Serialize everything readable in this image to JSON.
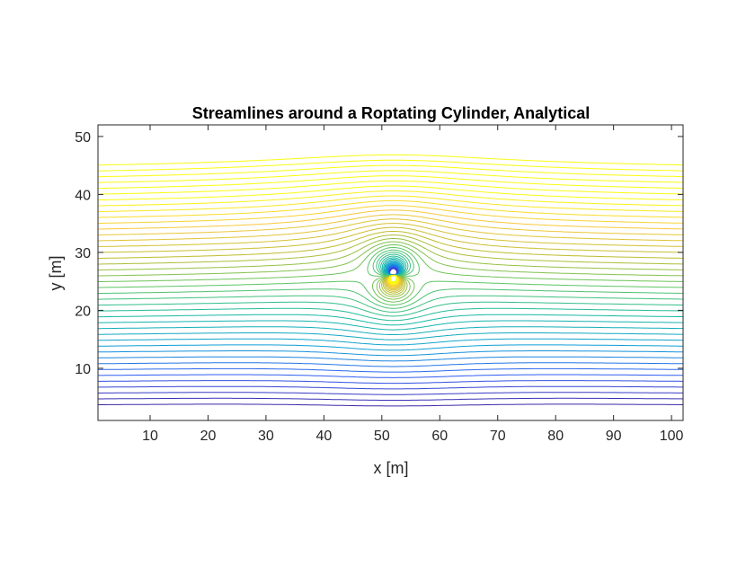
{
  "chart_data": {
    "type": "contour",
    "title": "Streamlines around a Roptating Cylinder, Analytical",
    "xlabel": "x [m]",
    "ylabel": "y [m]",
    "xlim": [
      1,
      102
    ],
    "ylim": [
      1,
      52
    ],
    "x_ticks": [
      "10",
      "20",
      "30",
      "40",
      "50",
      "60",
      "70",
      "80",
      "90",
      "100"
    ],
    "y_ticks": [
      "10",
      "20",
      "30",
      "40",
      "50"
    ],
    "grid": false,
    "box": true,
    "cylinder_center": [
      52,
      26
    ],
    "colormap": "parula",
    "colormap_stops": [
      "#3e26a8",
      "#2f5bf0",
      "#0f9ed6",
      "#17b8a6",
      "#5cc565",
      "#bdbc2d",
      "#f7c83a",
      "#f9fb0e"
    ],
    "free_stream_speed": 1,
    "cylinder_radius": 7,
    "vortex_strength": 1.55,
    "contour_level_spacing": 2
  }
}
